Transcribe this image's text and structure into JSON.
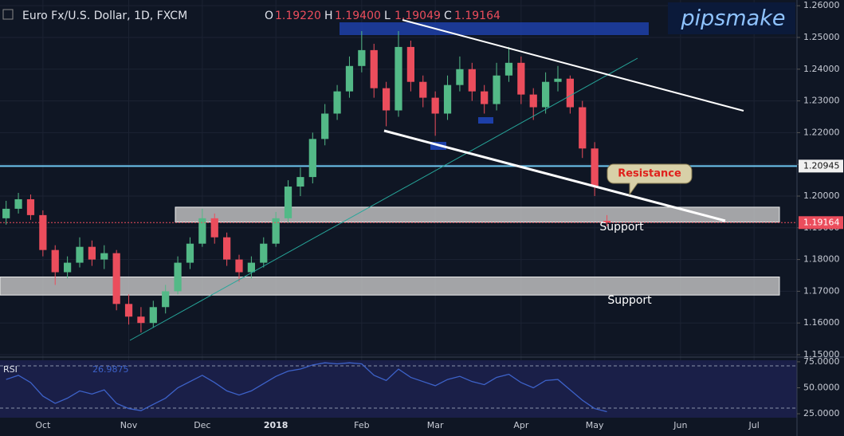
{
  "chart_data": {
    "type": "candlestick",
    "title": "Euro Fx/U.S. Dollar, 1D, FXCM",
    "header": [
      {
        "key": "O",
        "value": "1.19220"
      },
      {
        "key": "H",
        "value": "1.19400"
      },
      {
        "key": "L",
        "value": "1.19049"
      },
      {
        "key": "C",
        "value": "1.19164"
      }
    ],
    "logo": "pipsmake",
    "categories": [
      null,
      null,
      null,
      "Oct",
      null,
      null,
      null,
      null,
      null,
      null,
      "Nov",
      null,
      null,
      null,
      null,
      null,
      "Dec",
      null,
      null,
      null,
      null,
      null,
      "2018",
      null,
      null,
      null,
      null,
      null,
      null,
      "Feb",
      null,
      null,
      null,
      null,
      null,
      "Mar",
      null,
      null,
      null,
      null,
      null,
      null,
      "Apr",
      null,
      null,
      null,
      null,
      null,
      "May",
      null,
      null,
      null,
      null,
      null,
      null,
      "Jun",
      null,
      null,
      null,
      null,
      null,
      "Jul",
      null,
      null,
      null
    ],
    "open": [
      1.193,
      1.196,
      1.199,
      1.194,
      1.183,
      1.176,
      1.179,
      1.184,
      1.18,
      1.182,
      1.166,
      1.162,
      1.16,
      1.165,
      1.17,
      1.179,
      1.185,
      1.193,
      1.187,
      1.18,
      1.176,
      1.179,
      1.185,
      1.193,
      1.203,
      1.206,
      1.218,
      1.226,
      1.233,
      1.241,
      1.246,
      1.234,
      1.227,
      1.247,
      1.236,
      1.231,
      1.226,
      1.235,
      1.24,
      1.233,
      1.229,
      1.238,
      1.242,
      1.232,
      1.228,
      1.236,
      1.237,
      1.228,
      1.215,
      1.1922,
      null,
      null,
      null,
      null,
      null,
      null,
      null,
      null,
      null,
      null,
      null,
      null,
      null,
      null,
      null
    ],
    "high": [
      1.1985,
      1.201,
      1.2005,
      1.1955,
      1.1845,
      1.181,
      1.187,
      1.186,
      1.1845,
      1.183,
      1.169,
      1.165,
      1.167,
      1.172,
      1.181,
      1.187,
      1.196,
      1.1945,
      1.1885,
      1.1815,
      1.181,
      1.187,
      1.195,
      1.205,
      1.209,
      1.22,
      1.229,
      1.235,
      1.244,
      1.252,
      1.248,
      1.236,
      1.252,
      1.249,
      1.238,
      1.233,
      1.238,
      1.244,
      1.242,
      1.235,
      1.242,
      1.247,
      1.244,
      1.234,
      1.239,
      1.241,
      1.238,
      1.23,
      1.217,
      1.194,
      null,
      null,
      null,
      null,
      null,
      null,
      null,
      null,
      null,
      null,
      null,
      null,
      null,
      null,
      null
    ],
    "low": [
      1.191,
      1.1945,
      1.1925,
      1.181,
      1.172,
      1.174,
      1.1775,
      1.178,
      1.177,
      1.164,
      1.1595,
      1.157,
      1.1585,
      1.163,
      1.169,
      1.177,
      1.184,
      1.185,
      1.178,
      1.173,
      1.174,
      1.1775,
      1.184,
      1.1915,
      1.2,
      1.204,
      1.216,
      1.224,
      1.231,
      1.239,
      1.231,
      1.222,
      1.225,
      1.233,
      1.228,
      1.219,
      1.224,
      1.233,
      1.23,
      1.226,
      1.227,
      1.236,
      1.229,
      1.224,
      1.226,
      1.233,
      1.226,
      1.212,
      1.2,
      1.19049,
      null,
      null,
      null,
      null,
      null,
      null,
      null,
      null,
      null,
      null,
      null,
      null,
      null,
      null,
      null
    ],
    "close": [
      1.196,
      1.199,
      1.194,
      1.183,
      1.176,
      1.179,
      1.184,
      1.18,
      1.182,
      1.166,
      1.162,
      1.16,
      1.165,
      1.17,
      1.179,
      1.185,
      1.193,
      1.187,
      1.18,
      1.176,
      1.179,
      1.185,
      1.193,
      1.203,
      1.206,
      1.218,
      1.226,
      1.233,
      1.241,
      1.246,
      1.234,
      1.227,
      1.247,
      1.236,
      1.231,
      1.226,
      1.235,
      1.24,
      1.233,
      1.229,
      1.238,
      1.242,
      1.232,
      1.228,
      1.236,
      1.237,
      1.228,
      1.215,
      1.203,
      1.19164,
      null,
      null,
      null,
      null,
      null,
      null,
      null,
      null,
      null,
      null,
      null,
      null,
      null,
      null,
      null
    ],
    "up_color": "#53b987",
    "down_color": "#eb4d5c",
    "ylim": [
      1.1495,
      1.2618
    ],
    "yticks": [
      {
        "value": 1.26,
        "label": "1.26000"
      },
      {
        "value": 1.25,
        "label": "1.25000"
      },
      {
        "value": 1.24,
        "label": "1.24000"
      },
      {
        "value": 1.23,
        "label": "1.23000"
      },
      {
        "value": 1.22,
        "label": "1.22000"
      },
      {
        "value": 1.21,
        "label": "1.21000"
      },
      {
        "value": 1.2,
        "label": "1.20000"
      },
      {
        "value": 1.19,
        "label": "1.19000"
      },
      {
        "value": 1.18,
        "label": "1.18000"
      },
      {
        "value": 1.17,
        "label": "1.17000"
      },
      {
        "value": 1.16,
        "label": "1.16000"
      },
      {
        "value": 1.15,
        "label": "1.15000"
      }
    ],
    "grid": true,
    "hline": 1.20945,
    "zones": [
      [
        1.1918,
        1.1965
      ],
      [
        1.1688,
        1.1745
      ]
    ],
    "annotations": [
      "Resistance",
      "Support",
      "Support"
    ],
    "rsi": {
      "name": "RSI",
      "color": "#3d62c9",
      "ylim": [
        22,
        78
      ],
      "yticks": [
        {
          "value": 75,
          "label": "75.0000"
        },
        {
          "value": 50,
          "label": "50.0000"
        },
        {
          "value": 25,
          "label": "25.0000"
        }
      ],
      "values": [
        58,
        62,
        55,
        42,
        35,
        40,
        47,
        44,
        48,
        35,
        30,
        28,
        34,
        40,
        50,
        56,
        62,
        55,
        47,
        43,
        47,
        54,
        61,
        66,
        68,
        72,
        74,
        73,
        74,
        73,
        62,
        57,
        68,
        60,
        56,
        52,
        58,
        61,
        56,
        53,
        60,
        63,
        55,
        50,
        57,
        58,
        48,
        38,
        30,
        26.9875,
        null,
        null,
        null,
        null,
        null,
        null,
        null,
        null,
        null,
        null,
        null,
        null,
        null,
        null,
        null
      ]
    }
  }
}
